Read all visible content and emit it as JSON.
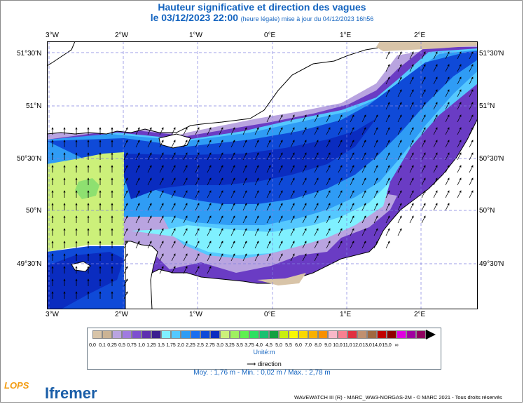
{
  "title": "Hauteur significative et direction des vagues",
  "subtitle_date": "le 03/12/2023 22:00",
  "subtitle_note": "(heure légale) mise à jour du 04/12/2023 16h56",
  "lon_labels": [
    "3°W",
    "2°W",
    "1°W",
    "0°E",
    "1°E",
    "2°E"
  ],
  "lat_labels": [
    "51°30'N",
    "51°N",
    "50°30'N",
    "50°N",
    "49°30'N"
  ],
  "colorbar": {
    "colors": [
      "#d8c4a8",
      "#cbb394",
      "#b9a4e0",
      "#a07be0",
      "#7d4fd0",
      "#5e2fb0",
      "#3b1f8f",
      "#7ff0ff",
      "#55c8ff",
      "#2f9cf5",
      "#1a6ef0",
      "#0f4ad8",
      "#0a2cc0",
      "#ccf07a",
      "#9ff060",
      "#5ef050",
      "#2ee060",
      "#1ac070",
      "#12a040",
      "#c8ee10",
      "#f8f800",
      "#f8d800",
      "#f8b000",
      "#f89000",
      "#f8b8c8",
      "#f88090",
      "#e03040",
      "#c09070",
      "#a06840",
      "#c00000",
      "#8f0000",
      "#e000e0",
      "#a000a0",
      "#900060",
      "#000000"
    ],
    "labels": [
      "0,0",
      "0,1",
      "0,25",
      "0,5",
      "0,75",
      "1,0",
      "1,25",
      "1,5",
      "1,75",
      "2,0",
      "2,25",
      "2,5",
      "2,75",
      "3,0",
      "3,25",
      "3,5",
      "3,75",
      "4,0",
      "4,5",
      "5,0",
      "5,5",
      "6,0",
      "7,0",
      "8,0",
      "9,0",
      "10,0",
      "11,0",
      "12,0",
      "13,0",
      "14,0",
      "15,0",
      "∞"
    ],
    "unit": "Unité:m"
  },
  "direction_label": "direction",
  "stats": "Moy. : 1,76 m  -  Min. : 0,02 m / Max. : 2,78 m",
  "credit": "WAVEWATCH III (R) - MARC_WW3-NORGAS-2M - © MARC 2021 - Tous droits réservés",
  "logos": {
    "lops": "LOPS",
    "ifremer": "Ifremer"
  }
}
